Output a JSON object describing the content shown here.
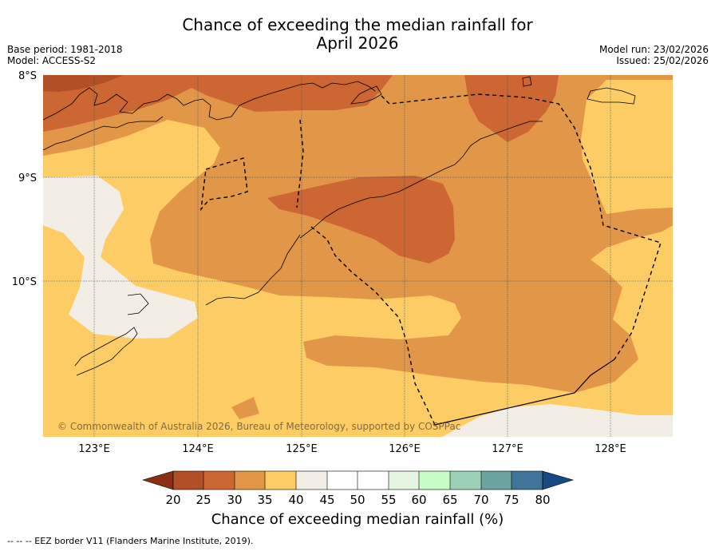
{
  "title_line1": "Chance of exceeding the median rainfall for",
  "title_line2": "April 2026",
  "meta_left": {
    "base_period": "Base period: 1981-2018",
    "model": "Model: ACCESS-S2"
  },
  "meta_right": {
    "model_run": "Model run: 23/02/2026",
    "issued": "Issued: 25/02/2026"
  },
  "map": {
    "lat_labels": [
      "8°S",
      "9°S",
      "10°S"
    ],
    "lon_labels": [
      "123°E",
      "124°E",
      "125°E",
      "126°E",
      "127°E",
      "128°E"
    ],
    "copyright": "© Commonwealth of Australia 2026, Bureau of Meteorology, supported by COSPPac"
  },
  "colorbar": {
    "ticks": [
      "20",
      "25",
      "30",
      "35",
      "40",
      "45",
      "50",
      "55",
      "60",
      "65",
      "70",
      "75",
      "80"
    ],
    "colors": {
      "below20": "#8c2d14",
      "c20_25": "#b14f27",
      "c25_30": "#cc6633",
      "c30_35": "#e29647",
      "c35_40": "#fdcc65",
      "c40_45": "#f2ede5",
      "c45_50": "#ffffff",
      "c50_55": "#ffffff",
      "c55_60": "#e5f5e0",
      "c60_65": "#c7fcc6",
      "c65_70": "#9cd0b7",
      "c70_75": "#6aa3a0",
      "c75_80": "#3e7598",
      "above80": "#174a85"
    },
    "label": "Chance of exceeding median rainfall (%)"
  },
  "footer": "--  --  -- EEZ border V11 (Flanders Marine Institute, 2019)."
}
